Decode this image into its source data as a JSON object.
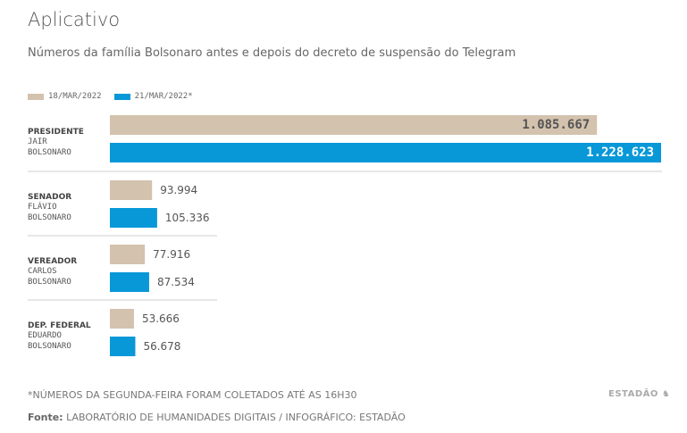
{
  "header": {
    "title": "Aplicativo",
    "subtitle": "Números da família Bolsonaro antes e depois do decreto de suspensão do Telegram"
  },
  "legend": [
    {
      "label": "18/MAR/2022",
      "color": "#d3c2ad"
    },
    {
      "label": "21/MAR/2022*",
      "color": "#0898d8"
    }
  ],
  "chart_data": {
    "type": "bar",
    "orientation": "horizontal",
    "categories": [
      {
        "role": "PRESIDENTE",
        "name": [
          "JAIR",
          "BOLSONARO"
        ]
      },
      {
        "role": "SENADOR",
        "name": [
          "FLÁVIO",
          "BOLSONARO"
        ]
      },
      {
        "role": "VEREADOR",
        "name": [
          "CARLOS",
          "BOLSONARO"
        ]
      },
      {
        "role": "DEP. FEDERAL",
        "name": [
          "EDUARDO",
          "BOLSONARO"
        ]
      }
    ],
    "series": [
      {
        "name": "18/MAR/2022",
        "values": [
          1085667,
          93994,
          77916,
          53666
        ],
        "labels": [
          "1.085.667",
          "93.994",
          "77.916",
          "53.666"
        ]
      },
      {
        "name": "21/MAR/2022*",
        "values": [
          1228623,
          105336,
          87534,
          56678
        ],
        "labels": [
          "1.228.623",
          "105.336",
          "87.534",
          "56.678"
        ]
      }
    ],
    "label_style": {
      "top_category_labels_inside": true
    },
    "grid": false
  },
  "footer": {
    "footnote": "*NÚMEROS DA SEGUNDA-FEIRA FORAM COLETADOS ATÉ AS 16H30",
    "source_label": "Fonte:",
    "source_text": "LABORATÓRIO DE HUMANIDADES DIGITAIS / INFOGRÁFICO: ESTADÃO",
    "brand": "ESTADÃO",
    "brand_icon": "horse-icon"
  }
}
